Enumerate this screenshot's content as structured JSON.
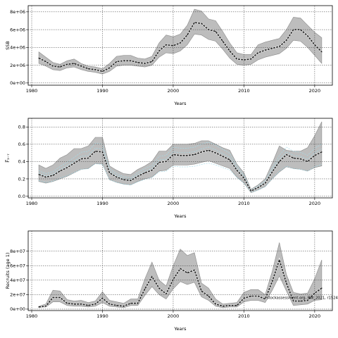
{
  "chart_data": [
    {
      "type": "line",
      "xlabel": "Years",
      "ylabel": "SSB",
      "xlim": [
        1979.5,
        2022.5
      ],
      "ylim": [
        -250000,
        8700000
      ],
      "x_ticks": [
        1980,
        1990,
        2000,
        2010,
        2020
      ],
      "y_ticks": [
        0,
        2000000,
        4000000,
        6000000,
        8000000
      ],
      "y_tick_labels": [
        "0e+00",
        "2e+06",
        "4e+06",
        "6e+06",
        "8e+06"
      ],
      "grid": "dotted",
      "x": [
        1981,
        1982,
        1983,
        1984,
        1985,
        1986,
        1987,
        1988,
        1989,
        1990,
        1991,
        1992,
        1993,
        1994,
        1995,
        1996,
        1997,
        1998,
        1999,
        2000,
        2001,
        2002,
        2003,
        2004,
        2005,
        2006,
        2007,
        2008,
        2009,
        2010,
        2011,
        2012,
        2013,
        2014,
        2015,
        2016,
        2017,
        2018,
        2019,
        2020,
        2021
      ],
      "series": [
        {
          "role": "upper",
          "values": [
            3500000,
            2900000,
            2300000,
            2100000,
            2500000,
            2700000,
            2200000,
            1900000,
            1800000,
            1600000,
            2200000,
            3000000,
            3100000,
            3100000,
            2800000,
            2700000,
            3000000,
            4500000,
            5400000,
            5200000,
            5500000,
            6500000,
            8300000,
            8100000,
            7200000,
            7000000,
            5800000,
            4500000,
            3400000,
            3200000,
            3200000,
            4300000,
            4600000,
            4800000,
            5000000,
            6000000,
            7400000,
            7300000,
            6500000,
            5700000,
            5100000
          ]
        },
        {
          "role": "estimate",
          "values": [
            2800000,
            2400000,
            1900000,
            1800000,
            2100000,
            2200000,
            1900000,
            1600000,
            1500000,
            1300000,
            1700000,
            2400000,
            2500000,
            2500000,
            2300000,
            2200000,
            2400000,
            3600000,
            4300000,
            4200000,
            4500000,
            5400000,
            6800000,
            6700000,
            6000000,
            5800000,
            4700000,
            3600000,
            2700000,
            2600000,
            2700000,
            3400000,
            3700000,
            3900000,
            4100000,
            4800000,
            6000000,
            6000000,
            5300000,
            4300000,
            3500000
          ]
        },
        {
          "role": "lower",
          "values": [
            2200000,
            1900000,
            1500000,
            1400000,
            1700000,
            1800000,
            1500000,
            1300000,
            1200000,
            1000000,
            1300000,
            1900000,
            2000000,
            2000000,
            1900000,
            1800000,
            2000000,
            2900000,
            3400000,
            3300000,
            3600000,
            4300000,
            5500000,
            5400000,
            4900000,
            4700000,
            3800000,
            2800000,
            2100000,
            2000000,
            2100000,
            2600000,
            2900000,
            3100000,
            3300000,
            3900000,
            4800000,
            4700000,
            4000000,
            3100000,
            2200000
          ]
        }
      ]
    },
    {
      "type": "line",
      "xlabel": "Years",
      "ylabel": "F̅₃₋₇",
      "xlim": [
        1979.5,
        2022.5
      ],
      "ylim": [
        -0.02,
        0.9
      ],
      "x_ticks": [
        1980,
        1990,
        2000,
        2010,
        2020
      ],
      "y_ticks": [
        0.0,
        0.2,
        0.4,
        0.6,
        0.8
      ],
      "y_tick_labels": [
        "0.0",
        "0.2",
        "0.4",
        "0.6",
        "0.8"
      ],
      "grid": "dotted",
      "x": [
        1981,
        1982,
        1983,
        1984,
        1985,
        1986,
        1987,
        1988,
        1989,
        1990,
        1991,
        1992,
        1993,
        1994,
        1995,
        1996,
        1997,
        1998,
        1999,
        2000,
        2001,
        2002,
        2003,
        2004,
        2005,
        2006,
        2007,
        2008,
        2009,
        2010,
        2011,
        2012,
        2013,
        2014,
        2015,
        2016,
        2017,
        2018,
        2019,
        2020,
        2021
      ],
      "series": [
        {
          "role": "upper",
          "values": [
            0.36,
            0.32,
            0.36,
            0.44,
            0.48,
            0.55,
            0.55,
            0.58,
            0.68,
            0.68,
            0.35,
            0.3,
            0.26,
            0.25,
            0.31,
            0.35,
            0.4,
            0.52,
            0.52,
            0.6,
            0.6,
            0.6,
            0.61,
            0.64,
            0.64,
            0.6,
            0.56,
            0.53,
            0.37,
            0.27,
            0.08,
            0.13,
            0.2,
            0.38,
            0.58,
            0.53,
            0.52,
            0.52,
            0.56,
            0.7,
            0.86
          ]
        },
        {
          "role": "estimate",
          "values": [
            0.25,
            0.22,
            0.24,
            0.29,
            0.33,
            0.38,
            0.43,
            0.44,
            0.52,
            0.51,
            0.27,
            0.22,
            0.19,
            0.18,
            0.23,
            0.27,
            0.3,
            0.39,
            0.4,
            0.48,
            0.47,
            0.47,
            0.48,
            0.51,
            0.53,
            0.5,
            0.46,
            0.42,
            0.3,
            0.21,
            0.06,
            0.1,
            0.15,
            0.28,
            0.4,
            0.48,
            0.44,
            0.43,
            0.4,
            0.47,
            0.51
          ]
        },
        {
          "role": "lower",
          "values": [
            0.17,
            0.15,
            0.17,
            0.2,
            0.23,
            0.27,
            0.31,
            0.32,
            0.38,
            0.37,
            0.19,
            0.16,
            0.14,
            0.13,
            0.17,
            0.2,
            0.22,
            0.29,
            0.3,
            0.36,
            0.36,
            0.36,
            0.37,
            0.39,
            0.41,
            0.38,
            0.35,
            0.32,
            0.22,
            0.15,
            0.04,
            0.07,
            0.11,
            0.2,
            0.28,
            0.34,
            0.32,
            0.31,
            0.29,
            0.33,
            0.35
          ]
        }
      ],
      "extra_series_color": "#a6dbe8"
    },
    {
      "type": "line",
      "xlabel": "Years",
      "ylabel": "Recruits (age 1)",
      "xlim": [
        1979.5,
        2022.5
      ],
      "ylim": [
        -2000000,
        108000000
      ],
      "x_ticks": [
        1980,
        1990,
        2000,
        2010,
        2020
      ],
      "y_ticks": [
        0,
        20000000,
        40000000,
        60000000,
        80000000
      ],
      "y_tick_labels": [
        "0e+00",
        "2e+07",
        "4e+07",
        "6e+07",
        "8e+07"
      ],
      "grid": "dotted",
      "annotation": "stockassessment.org, BW_2021, r1524",
      "x": [
        1981,
        1982,
        1983,
        1984,
        1985,
        1986,
        1987,
        1988,
        1989,
        1990,
        1991,
        1992,
        1993,
        1994,
        1995,
        1996,
        1997,
        1998,
        1999,
        2000,
        2001,
        2002,
        2003,
        2004,
        2005,
        2006,
        2007,
        2008,
        2009,
        2010,
        2011,
        2012,
        2013,
        2014,
        2015,
        2016,
        2017,
        2018,
        2019,
        2020,
        2021
      ],
      "series": [
        {
          "role": "upper",
          "values": [
            4000000,
            7000000,
            26000000,
            25000000,
            13000000,
            11000000,
            12000000,
            9000000,
            11000000,
            24000000,
            12000000,
            10000000,
            8000000,
            14000000,
            14000000,
            42000000,
            65000000,
            40000000,
            32000000,
            60000000,
            83000000,
            74000000,
            78000000,
            36000000,
            29000000,
            14000000,
            7000000,
            8000000,
            9000000,
            23000000,
            27000000,
            27000000,
            20000000,
            52000000,
            92000000,
            48000000,
            23000000,
            21000000,
            22000000,
            42000000,
            68000000
          ]
        },
        {
          "role": "estimate",
          "values": [
            3000000,
            4000000,
            16000000,
            16000000,
            8000000,
            7000000,
            7000000,
            5000000,
            7000000,
            15000000,
            7000000,
            5000000,
            4000000,
            8000000,
            8000000,
            28000000,
            45000000,
            29000000,
            21000000,
            41000000,
            56000000,
            50000000,
            54000000,
            25000000,
            18000000,
            7000000,
            4000000,
            5000000,
            5000000,
            15000000,
            18000000,
            18000000,
            14000000,
            38000000,
            68000000,
            36000000,
            11000000,
            11000000,
            12000000,
            22000000,
            29000000
          ]
        },
        {
          "role": "lower",
          "values": [
            2000000,
            3000000,
            10000000,
            10000000,
            5000000,
            4000000,
            4000000,
            3000000,
            4000000,
            9000000,
            4000000,
            3000000,
            2000000,
            5000000,
            5000000,
            19000000,
            31000000,
            20000000,
            14000000,
            28000000,
            38000000,
            34000000,
            37000000,
            17000000,
            12000000,
            4000000,
            2000000,
            3000000,
            3000000,
            10000000,
            12000000,
            12000000,
            9000000,
            26000000,
            46000000,
            25000000,
            5000000,
            6000000,
            7000000,
            12000000,
            13000000
          ]
        }
      ]
    }
  ]
}
